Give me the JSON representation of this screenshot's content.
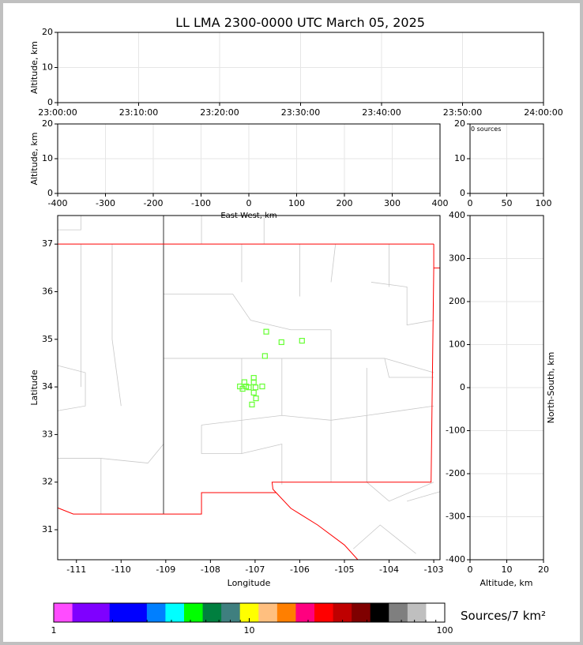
{
  "title": "LL LMA 2300-0000 UTC March 05, 2025",
  "chart_data": [
    {
      "type": "scatter",
      "name_panel": "altitude-time",
      "xlabel": "",
      "ylabel": "Altitude, km",
      "xticks": [
        "23:00:00",
        "23:10:00",
        "23:20:00",
        "23:30:00",
        "23:40:00",
        "23:50:00",
        "24:00:00"
      ],
      "ylim": [
        0,
        20
      ],
      "yticks": [
        0,
        10,
        20
      ],
      "grid": true,
      "points": []
    },
    {
      "type": "scatter",
      "name_panel": "altitude-eastwest",
      "xlabel": "East-West, km",
      "ylabel": "Altitude, km",
      "xlim": [
        -400,
        400
      ],
      "xticks": [
        -400,
        -300,
        -200,
        -100,
        0,
        100,
        200,
        300,
        400
      ],
      "ylim": [
        0,
        20
      ],
      "yticks": [
        0,
        10,
        20
      ],
      "grid": true,
      "points": []
    },
    {
      "type": "scatter",
      "name_panel": "source-count",
      "annotation": "0 sources",
      "xlim": [
        0,
        100
      ],
      "xticks": [
        0,
        50,
        100
      ],
      "ylim": [
        0,
        20
      ],
      "yticks": [
        0,
        10,
        20
      ],
      "grid": true,
      "points": []
    },
    {
      "type": "scatter",
      "name_panel": "plan-view",
      "xlabel": "Longitude",
      "ylabel": "Latitude",
      "xlim": [
        -111.42,
        -102.86
      ],
      "xticks": [
        -111,
        -110,
        -109,
        -108,
        -107,
        -106,
        -105,
        -104,
        -103
      ],
      "ylim": [
        30.37,
        37.6
      ],
      "yticks": [
        31,
        32,
        33,
        34,
        35,
        36,
        37
      ],
      "marker_color": "#66ff33",
      "points": [
        [
          -106.75,
          35.16
        ],
        [
          -106.41,
          34.94
        ],
        [
          -105.95,
          34.97
        ],
        [
          -106.78,
          34.65
        ],
        [
          -107.03,
          34.19
        ],
        [
          -107.24,
          34.1
        ],
        [
          -107.03,
          34.1
        ],
        [
          -107.34,
          34.01
        ],
        [
          -107.2,
          34.01
        ],
        [
          -107.28,
          33.96
        ],
        [
          -107.14,
          33.99
        ],
        [
          -106.99,
          33.99
        ],
        [
          -106.84,
          34.01
        ],
        [
          -107.03,
          33.88
        ],
        [
          -106.98,
          33.76
        ],
        [
          -107.07,
          33.63
        ]
      ]
    },
    {
      "type": "scatter",
      "name_panel": "northsouth-altitude",
      "xlabel": "Altitude, km",
      "ylabel": "North-South, km",
      "xlim": [
        0,
        20
      ],
      "xticks": [
        0,
        10,
        20
      ],
      "ylim": [
        -400,
        400
      ],
      "yticks": [
        -400,
        -300,
        -200,
        -100,
        0,
        100,
        200,
        300,
        400
      ],
      "grid": true,
      "points": []
    }
  ],
  "colorbar": {
    "label": "Sources/7 km²",
    "scale": "log",
    "range": [
      1,
      100
    ],
    "ticklabels": [
      "1",
      "10",
      "100"
    ],
    "colors": [
      "#ff4cff",
      "#7f00ff",
      "#7f00ff",
      "#0000ff",
      "#0000ff",
      "#007fff",
      "#00ffff",
      "#00ff00",
      "#007f3f",
      "#3f7f7f",
      "#ffff00",
      "#ffbf7f",
      "#ff7f00",
      "#ff007f",
      "#ff0000",
      "#bf0000",
      "#7f0000",
      "#000000",
      "#7f7f7f",
      "#bfbfbf",
      "#ffffff"
    ]
  }
}
